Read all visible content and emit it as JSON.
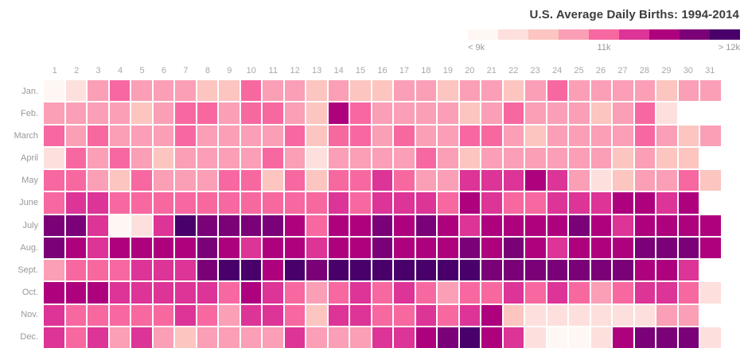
{
  "title": "U.S. Average Daily Births: 1994-2014",
  "legend": {
    "min_label": "< 9k",
    "mid_label": "11k",
    "max_label": "> 12k"
  },
  "chart_data": {
    "type": "heatmap",
    "title": "U.S. Average Daily Births: 1994-2014",
    "x_labels": [
      "1",
      "2",
      "3",
      "4",
      "5",
      "6",
      "7",
      "8",
      "9",
      "10",
      "11",
      "12",
      "13",
      "14",
      "15",
      "16",
      "17",
      "18",
      "19",
      "20",
      "21",
      "22",
      "23",
      "24",
      "25",
      "26",
      "27",
      "28",
      "29",
      "30",
      "31"
    ],
    "y_labels": [
      "Jan.",
      "Feb.",
      "March",
      "April",
      "May",
      "June",
      "July",
      "Aug.",
      "Sept.",
      "Oct.",
      "Nov.",
      "Dec."
    ],
    "palette": [
      "#fff7f3",
      "#fde0dd",
      "#fcc5c0",
      "#fa9fb5",
      "#f768a1",
      "#dd3497",
      "#ae017e",
      "#7a0177",
      "#49006a"
    ],
    "palette_value_labels": {
      "first": "< 9k",
      "middle": "11k",
      "last": "> 12k"
    },
    "legend_position": "top-right",
    "grid": "white 2px gaps between cells",
    "value_note": "levels are indices 0-8 into palette; 0 = fewest births (< 9k/day), 8 = most (> 12k/day)",
    "series": [
      {
        "month": "Jan.",
        "days": 31,
        "levels": [
          0,
          1,
          3,
          4,
          3,
          3,
          3,
          2,
          2,
          4,
          3,
          3,
          2,
          3,
          2,
          2,
          3,
          3,
          2,
          3,
          3,
          2,
          3,
          4,
          3,
          3,
          3,
          3,
          2,
          3,
          3
        ]
      },
      {
        "month": "Feb.",
        "days": 29,
        "levels": [
          3,
          3,
          3,
          3,
          2,
          3,
          4,
          4,
          3,
          4,
          4,
          3,
          2,
          6,
          4,
          3,
          3,
          3,
          3,
          2,
          3,
          4,
          3,
          3,
          3,
          2,
          3,
          4,
          1
        ]
      },
      {
        "month": "March",
        "days": 31,
        "levels": [
          4,
          3,
          4,
          3,
          3,
          3,
          4,
          3,
          3,
          3,
          3,
          4,
          2,
          4,
          4,
          3,
          4,
          3,
          3,
          4,
          4,
          3,
          2,
          3,
          3,
          3,
          3,
          4,
          3,
          2,
          3
        ]
      },
      {
        "month": "April",
        "days": 30,
        "levels": [
          1,
          4,
          3,
          4,
          3,
          2,
          3,
          3,
          3,
          3,
          4,
          3,
          1,
          3,
          3,
          3,
          3,
          4,
          3,
          2,
          3,
          3,
          3,
          3,
          3,
          3,
          2,
          3,
          2,
          2
        ]
      },
      {
        "month": "May",
        "days": 31,
        "levels": [
          4,
          4,
          3,
          2,
          4,
          3,
          3,
          3,
          4,
          4,
          2,
          4,
          2,
          4,
          4,
          5,
          4,
          3,
          3,
          5,
          5,
          5,
          6,
          5,
          3,
          1,
          2,
          3,
          3,
          4,
          2
        ]
      },
      {
        "month": "June",
        "days": 30,
        "levels": [
          4,
          5,
          5,
          4,
          4,
          4,
          4,
          4,
          4,
          4,
          4,
          4,
          4,
          5,
          4,
          5,
          5,
          5,
          4,
          6,
          5,
          4,
          4,
          5,
          5,
          5,
          6,
          6,
          5,
          6
        ]
      },
      {
        "month": "July",
        "days": 31,
        "levels": [
          7,
          7,
          5,
          0,
          1,
          5,
          8,
          7,
          7,
          7,
          7,
          6,
          4,
          6,
          6,
          7,
          6,
          7,
          6,
          5,
          6,
          6,
          6,
          6,
          7,
          6,
          5,
          6,
          6,
          6,
          6
        ]
      },
      {
        "month": "Aug.",
        "days": 31,
        "levels": [
          7,
          6,
          5,
          6,
          6,
          6,
          6,
          7,
          6,
          5,
          6,
          6,
          5,
          6,
          6,
          7,
          6,
          6,
          6,
          7,
          6,
          7,
          6,
          5,
          6,
          6,
          6,
          7,
          7,
          7,
          6
        ]
      },
      {
        "month": "Sept.",
        "days": 30,
        "levels": [
          3,
          4,
          4,
          4,
          5,
          5,
          5,
          7,
          8,
          8,
          6,
          8,
          7,
          8,
          8,
          8,
          8,
          8,
          8,
          8,
          7,
          7,
          7,
          7,
          7,
          7,
          7,
          6,
          6,
          5
        ]
      },
      {
        "month": "Oct.",
        "days": 31,
        "levels": [
          6,
          6,
          6,
          5,
          5,
          5,
          5,
          5,
          4,
          6,
          5,
          4,
          3,
          4,
          5,
          4,
          5,
          4,
          3,
          4,
          4,
          5,
          4,
          5,
          4,
          3,
          4,
          5,
          5,
          4,
          1
        ]
      },
      {
        "month": "Nov.",
        "days": 30,
        "levels": [
          5,
          4,
          4,
          4,
          4,
          4,
          5,
          4,
          3,
          5,
          5,
          4,
          2,
          5,
          5,
          4,
          4,
          5,
          4,
          5,
          6,
          2,
          1,
          1,
          1,
          1,
          1,
          1,
          3,
          3
        ]
      },
      {
        "month": "Dec.",
        "days": 31,
        "levels": [
          5,
          4,
          5,
          3,
          5,
          3,
          2,
          3,
          3,
          3,
          3,
          5,
          3,
          3,
          3,
          5,
          5,
          6,
          7,
          8,
          6,
          5,
          1,
          0,
          0,
          1,
          6,
          7,
          7,
          7,
          1
        ]
      }
    ]
  }
}
